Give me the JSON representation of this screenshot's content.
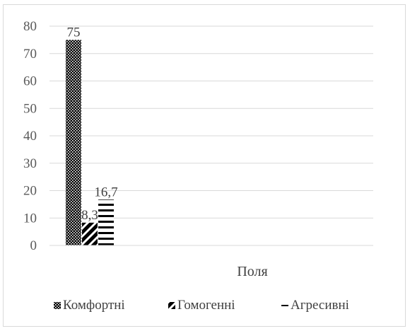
{
  "chart_data": {
    "type": "bar",
    "categories": [
      "Поля"
    ],
    "series": [
      {
        "name": "Комфортні",
        "values": [
          75
        ],
        "label": "75",
        "pattern": "dots"
      },
      {
        "name": "Гомогенні",
        "values": [
          8.3
        ],
        "label": "8,3",
        "pattern": "diagonal"
      },
      {
        "name": "Агресивні",
        "values": [
          16.7
        ],
        "label": "16,7",
        "pattern": "horizontal"
      }
    ],
    "ylim": [
      0,
      80
    ],
    "yticks": [
      0,
      10,
      20,
      30,
      40,
      50,
      60,
      70,
      80
    ],
    "grid": true,
    "legend": "bottom",
    "colors": {
      "bar": "#000000",
      "grid": "#d9d9d9",
      "tick_text": "#595959",
      "text": "#404040"
    }
  }
}
